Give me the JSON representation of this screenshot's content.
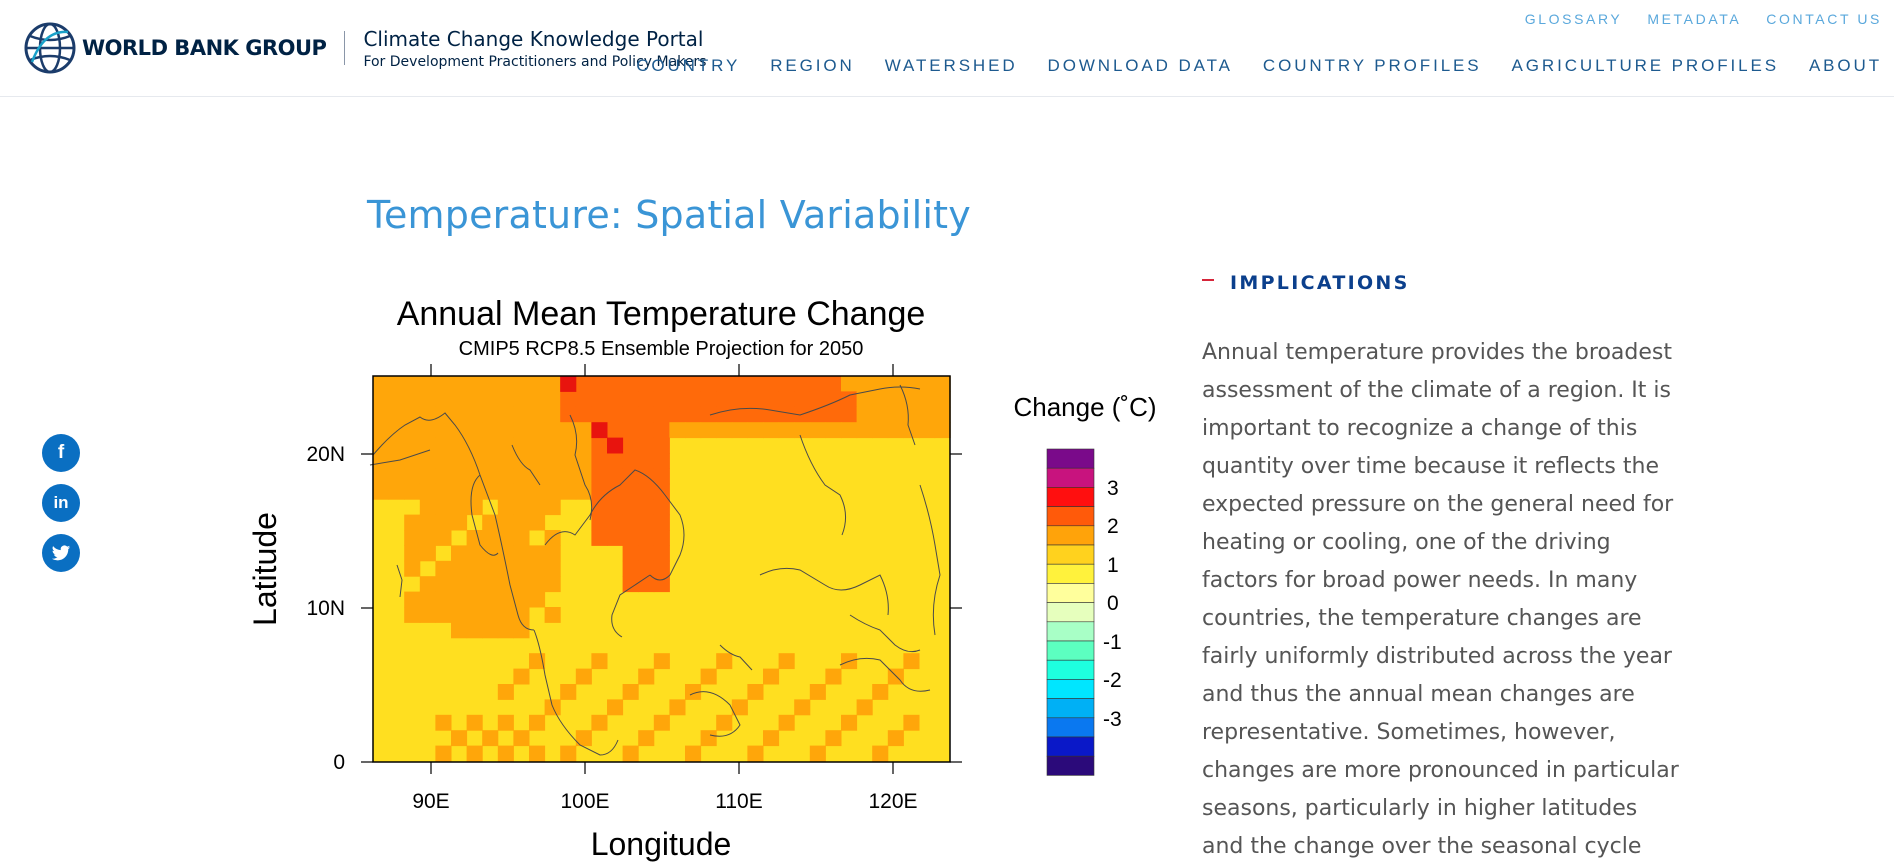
{
  "header": {
    "logo_text": "WORLD BANK GROUP",
    "portal_title": "Climate Change Knowledge Portal",
    "portal_subtitle": "For Development Practitioners and Policy Makers",
    "utility_nav": [
      "GLOSSARY",
      "METADATA",
      "CONTACT US"
    ],
    "main_nav": [
      "COUNTRY",
      "REGION",
      "WATERSHED",
      "DOWNLOAD DATA",
      "COUNTRY PROFILES",
      "AGRICULTURE PROFILES",
      "ABOUT"
    ]
  },
  "social": {
    "facebook": "f",
    "linkedin": "in",
    "twitter_icon": "twitter-bird-icon"
  },
  "page_title": "Temperature: Spatial Variability",
  "figure": {
    "title": "Annual Mean Temperature Change",
    "subtitle": "CMIP5 RCP8.5 Ensemble Projection for 2050",
    "ylabel": "Latitude",
    "xlabel": "Longitude",
    "ytick_labels": [
      "20N",
      "10N",
      "0"
    ],
    "xtick_labels": [
      "90E",
      "100E",
      "110E",
      "120E"
    ],
    "legend_title": "Change (˚C)",
    "legend_labels": [
      "3",
      "2",
      "1",
      "0",
      "-1",
      "-2",
      "-3"
    ],
    "legend_colors": [
      "#7a0a8a",
      "#c8137e",
      "#ff0f0f",
      "#ff5a0a",
      "#ffa30a",
      "#ffd21e",
      "#fff23c",
      "#ffff9c",
      "#e6ffbd",
      "#a8ffc6",
      "#5cffc0",
      "#1effdf",
      "#00e6ff",
      "#00b0f5",
      "#0a78f0",
      "#0a18c8",
      "#2b0a7a"
    ],
    "map_colors": {
      "land_yellow": "#ffdf20",
      "orange": "#ffa60a",
      "dark_orange": "#ff6a0a",
      "red": "#e8140e"
    }
  },
  "implications": {
    "title": "IMPLICATIONS",
    "body": "Annual temperature provides the broadest assessment of the climate of a region. It is important to recognize a change of this quantity over time because it reflects the expected pressure on the general need for heating or cooling, one of the driving factors for broad power needs. In many countries, the temperature changes are fairly uniformly distributed across the year and thus the annual mean changes are representative. Sometimes, however, changes are more pronounced in particular seasons, particularly in higher latitudes and the change over the seasonal cycle should be consulted. In"
  }
}
